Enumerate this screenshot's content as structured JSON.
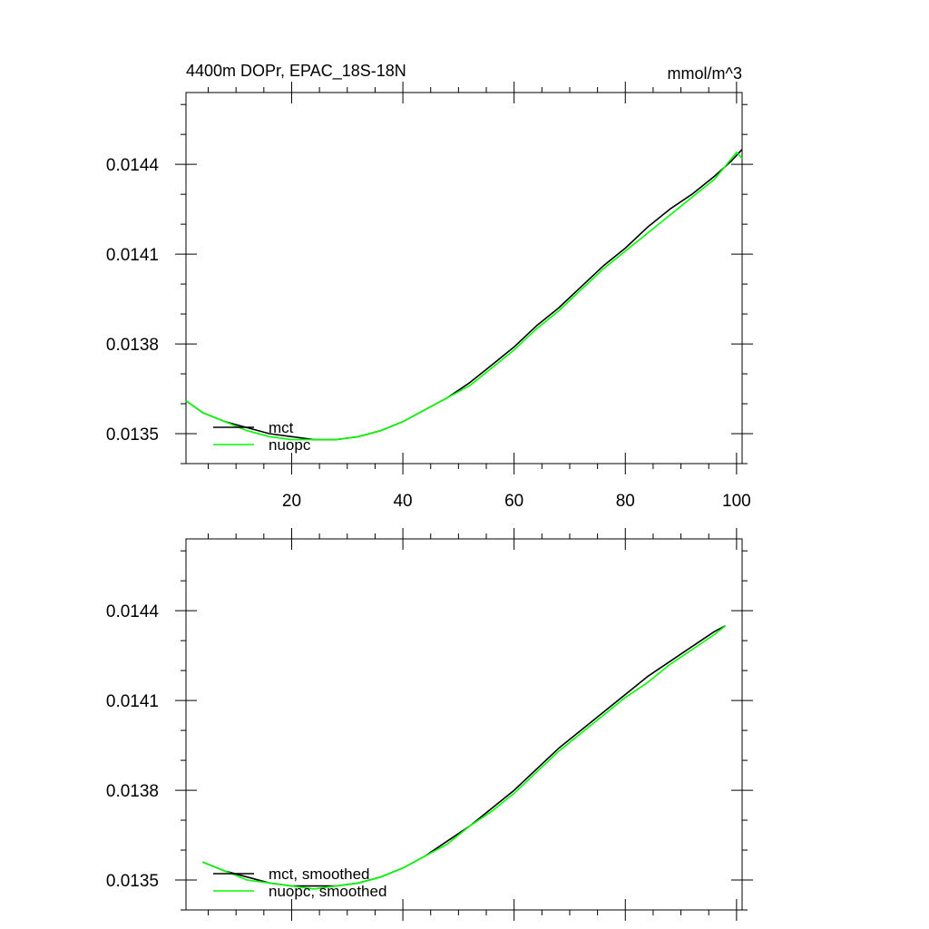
{
  "chart_data": [
    {
      "type": "line",
      "title": "4400m DOPr, EPAC_18S-18N",
      "units": "mmol/m^3",
      "xlabel": "",
      "ylabel": "",
      "xlim": [
        1,
        101
      ],
      "ylim": [
        0.0134,
        0.01464
      ],
      "xticks": [
        20,
        40,
        60,
        80,
        100
      ],
      "xtick_labels": [
        "20",
        "40",
        "60",
        "80",
        "100"
      ],
      "yticks": [
        0.0135,
        0.0138,
        0.0141,
        0.0144
      ],
      "ytick_labels": [
        "0.0135",
        "0.0138",
        "0.0141",
        "0.0144"
      ],
      "show_xtick_labels": true,
      "legend_position": "bottom-left",
      "grid": false,
      "series": [
        {
          "name": "mct",
          "color": "#000000",
          "x": [
            1,
            4,
            8,
            12,
            16,
            20,
            24,
            28,
            32,
            36,
            40,
            44,
            48,
            52,
            56,
            60,
            64,
            68,
            72,
            76,
            80,
            84,
            88,
            92,
            96,
            99,
            101
          ],
          "values": [
            0.01361,
            0.01357,
            0.01354,
            0.01352,
            0.0135,
            0.01349,
            0.01348,
            0.01348,
            0.01349,
            0.01351,
            0.01354,
            0.01358,
            0.01362,
            0.01367,
            0.01373,
            0.01379,
            0.01386,
            0.01392,
            0.01399,
            0.01406,
            0.01412,
            0.01419,
            0.01425,
            0.0143,
            0.01436,
            0.01441,
            0.01445
          ]
        },
        {
          "name": "nuopc",
          "color": "#00ff00",
          "x": [
            1,
            4,
            8,
            12,
            16,
            20,
            24,
            28,
            32,
            36,
            40,
            44,
            48,
            52,
            56,
            60,
            64,
            68,
            72,
            76,
            80,
            84,
            88,
            92,
            96,
            100,
            101
          ],
          "values": [
            0.01361,
            0.01357,
            0.01354,
            0.01351,
            0.01349,
            0.01348,
            0.01348,
            0.01348,
            0.01349,
            0.01351,
            0.01354,
            0.01358,
            0.01362,
            0.01366,
            0.01372,
            0.01378,
            0.01385,
            0.01391,
            0.01398,
            0.01405,
            0.01411,
            0.01417,
            0.01423,
            0.01429,
            0.01435,
            0.01444,
            0.01442
          ]
        }
      ]
    },
    {
      "type": "line",
      "title": "",
      "units": "",
      "xlabel": "",
      "ylabel": "",
      "xlim": [
        1,
        101
      ],
      "ylim": [
        0.0134,
        0.01464
      ],
      "xticks": [
        20,
        40,
        60,
        80,
        100
      ],
      "yticks": [
        0.0135,
        0.0138,
        0.0141,
        0.0144
      ],
      "ytick_labels": [
        "0.0135",
        "0.0138",
        "0.0141",
        "0.0144"
      ],
      "show_xtick_labels": false,
      "legend_position": "bottom-left",
      "grid": false,
      "series": [
        {
          "name": "mct, smoothed",
          "color": "#000000",
          "x": [
            4,
            8,
            12,
            16,
            20,
            24,
            28,
            32,
            36,
            40,
            44,
            48,
            52,
            56,
            60,
            64,
            68,
            72,
            76,
            80,
            84,
            88,
            92,
            96,
            98
          ],
          "values": [
            0.01356,
            0.01353,
            0.01351,
            0.01349,
            0.01348,
            0.01348,
            0.01348,
            0.01349,
            0.01351,
            0.01354,
            0.01358,
            0.01363,
            0.01368,
            0.01374,
            0.0138,
            0.01387,
            0.01394,
            0.014,
            0.01406,
            0.01412,
            0.01418,
            0.01423,
            0.01428,
            0.01433,
            0.01435
          ]
        },
        {
          "name": "nuopc, smoothed",
          "color": "#00ff00",
          "x": [
            4,
            8,
            12,
            16,
            20,
            24,
            28,
            32,
            36,
            40,
            44,
            48,
            52,
            56,
            60,
            64,
            68,
            72,
            76,
            80,
            84,
            88,
            92,
            96,
            98
          ],
          "values": [
            0.01356,
            0.01353,
            0.0135,
            0.01349,
            0.01348,
            0.01347,
            0.01348,
            0.01349,
            0.01351,
            0.01354,
            0.01358,
            0.01362,
            0.01368,
            0.01373,
            0.01379,
            0.01386,
            0.01393,
            0.01399,
            0.01405,
            0.01411,
            0.01416,
            0.01422,
            0.01427,
            0.01432,
            0.01435
          ]
        }
      ]
    }
  ]
}
